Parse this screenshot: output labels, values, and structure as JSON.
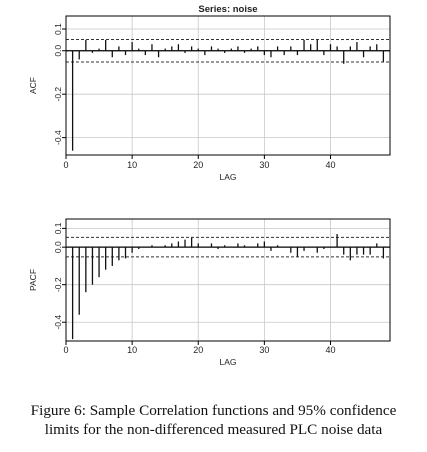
{
  "chart_data": [
    {
      "type": "bar",
      "title": "Series: noise",
      "xlabel": "LAG",
      "ylabel": "ACF",
      "xlim": [
        0,
        49
      ],
      "ylim": [
        -0.48,
        0.16
      ],
      "xticks": [
        "0",
        "10",
        "20",
        "30",
        "40"
      ],
      "yticks": [
        "-0.4",
        "-0.2",
        "0.0",
        "0.1"
      ],
      "confidence_limits": [
        0.052,
        -0.052
      ],
      "grid": true,
      "x": [
        1,
        2,
        3,
        4,
        5,
        6,
        7,
        8,
        9,
        10,
        11,
        12,
        13,
        14,
        15,
        16,
        17,
        18,
        19,
        20,
        21,
        22,
        23,
        24,
        25,
        26,
        27,
        28,
        29,
        30,
        31,
        32,
        33,
        34,
        35,
        36,
        37,
        38,
        39,
        40,
        41,
        42,
        43,
        44,
        45,
        46,
        47,
        48
      ],
      "values": [
        -0.46,
        -0.04,
        0.05,
        -0.01,
        0.01,
        0.05,
        -0.03,
        0.02,
        -0.02,
        0.04,
        0.01,
        -0.02,
        0.03,
        -0.03,
        0.01,
        0.02,
        0.03,
        -0.01,
        0.02,
        0.01,
        -0.02,
        0.02,
        0.01,
        -0.01,
        0.01,
        0.02,
        -0.01,
        0.01,
        0.02,
        -0.02,
        -0.03,
        0.02,
        -0.02,
        0.02,
        -0.02,
        0.05,
        0.03,
        0.05,
        -0.02,
        0.03,
        0.02,
        -0.06,
        0.02,
        0.04,
        -0.03,
        0.02,
        0.03,
        -0.05
      ]
    },
    {
      "type": "bar",
      "title": "",
      "xlabel": "LAG",
      "ylabel": "PACF",
      "xlim": [
        0,
        49
      ],
      "ylim": [
        -0.5,
        0.15
      ],
      "xticks": [
        "0",
        "10",
        "20",
        "30",
        "40"
      ],
      "yticks": [
        "-0.4",
        "-0.2",
        "0.0",
        "0.1"
      ],
      "confidence_limits": [
        0.052,
        -0.052
      ],
      "grid": true,
      "x": [
        1,
        2,
        3,
        4,
        5,
        6,
        7,
        8,
        9,
        10,
        11,
        12,
        13,
        14,
        15,
        16,
        17,
        18,
        19,
        20,
        21,
        22,
        23,
        24,
        25,
        26,
        27,
        28,
        29,
        30,
        31,
        32,
        33,
        34,
        35,
        36,
        37,
        38,
        39,
        40,
        41,
        42,
        43,
        44,
        45,
        46,
        47,
        48
      ],
      "values": [
        -0.49,
        -0.36,
        -0.24,
        -0.2,
        -0.16,
        -0.12,
        -0.1,
        -0.07,
        -0.06,
        -0.03,
        -0.01,
        0.0,
        0.01,
        0.0,
        0.01,
        0.02,
        0.03,
        0.04,
        0.05,
        0.02,
        0.0,
        0.02,
        -0.01,
        0.01,
        0.0,
        0.02,
        0.01,
        0.0,
        0.02,
        0.03,
        -0.02,
        0.01,
        0.0,
        -0.03,
        -0.05,
        -0.02,
        0.0,
        -0.03,
        -0.01,
        0.0,
        0.07,
        -0.04,
        -0.07,
        -0.04,
        -0.04,
        -0.04,
        0.02,
        -0.06
      ]
    }
  ],
  "caption": {
    "line1": "Figure 6: Sample Correlation functions and 95% confidence",
    "line2": "limits for the non-differenced measured PLC noise data"
  },
  "colors": {
    "bars": "#111111",
    "grid": "#c8c8c8",
    "frame": "#000000",
    "limits": "#333333"
  }
}
